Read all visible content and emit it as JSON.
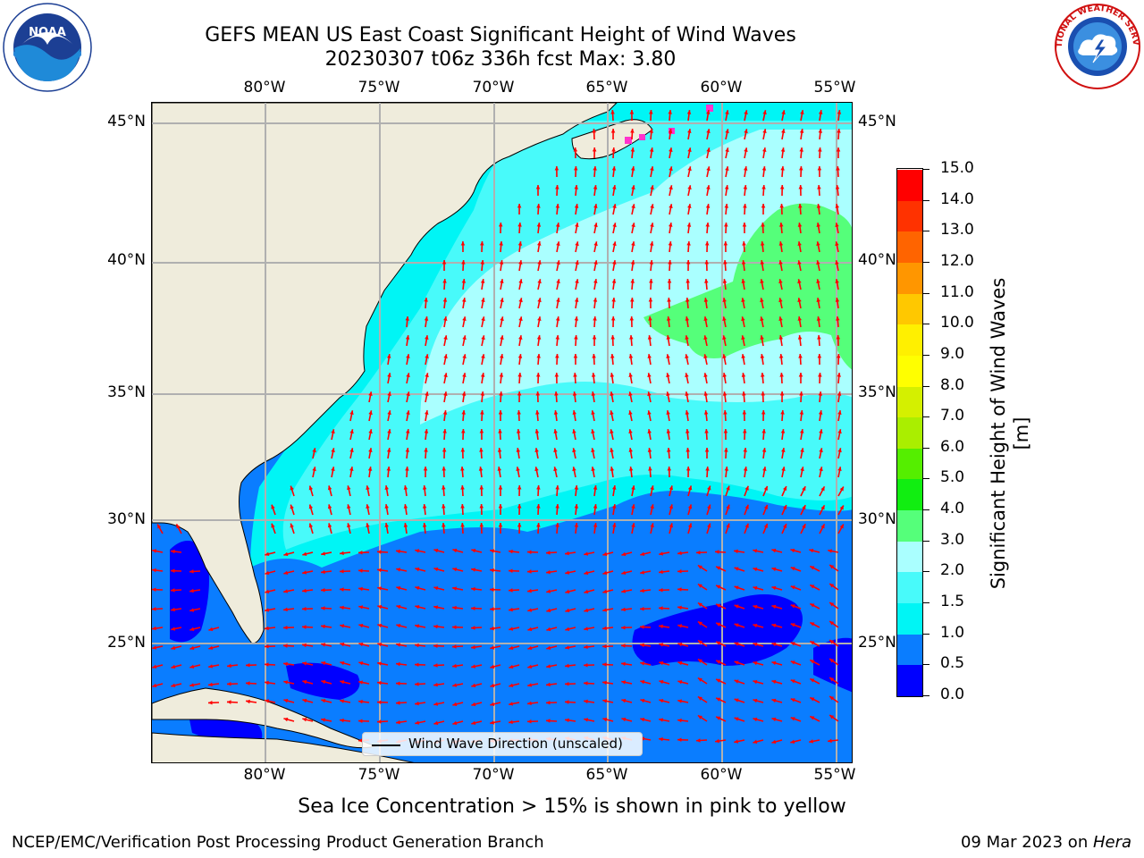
{
  "title_line1": "GEFS MEAN US East Coast Significant Height of Wind Waves",
  "title_line2": "20230307 t06z 336h fcst   Max: 3.80",
  "logos": [
    {
      "name": "noaa-logo",
      "text": "NOAA"
    },
    {
      "name": "nws-logo",
      "text": "NATIONAL WEATHER SERVICE"
    }
  ],
  "map": {
    "lon_labels": [
      "80°W",
      "75°W",
      "70°W",
      "65°W",
      "60°W",
      "55°W"
    ],
    "lat_labels": [
      "45°N",
      "40°N",
      "35°N",
      "30°N",
      "25°N"
    ],
    "land_color": "#efecdc",
    "grid_color": "#b0b0b0",
    "arrow_color": "#ff0000",
    "legend_label": "Wind Wave Direction (unscaled)"
  },
  "colorbar": {
    "label": "Significant Height of Wind Waves [m]",
    "ticks": [
      "0.0",
      "0.5",
      "1.0",
      "1.5",
      "2.0",
      "3.0",
      "4.0",
      "5.0",
      "6.0",
      "7.0",
      "8.0",
      "9.0",
      "10.0",
      "11.0",
      "12.0",
      "13.0",
      "14.0",
      "15.0"
    ],
    "colors": [
      "#0000ff",
      "#0a7dff",
      "#00f5f5",
      "#48fafa",
      "#aaffff",
      "#55ff7a",
      "#11ee11",
      "#55ee00",
      "#aaee00",
      "#d4f000",
      "#ffff00",
      "#fff000",
      "#ffc800",
      "#ff9600",
      "#ff6400",
      "#ff3200",
      "#ff0000"
    ]
  },
  "sea_ice_note": "Sea Ice Concentration > 15% is shown in pink to yellow",
  "footer_left": "NCEP/EMC/Verification Post Processing Product Generation Branch",
  "footer_right_date": "09 Mar 2023 on ",
  "footer_right_host": "Hera"
}
